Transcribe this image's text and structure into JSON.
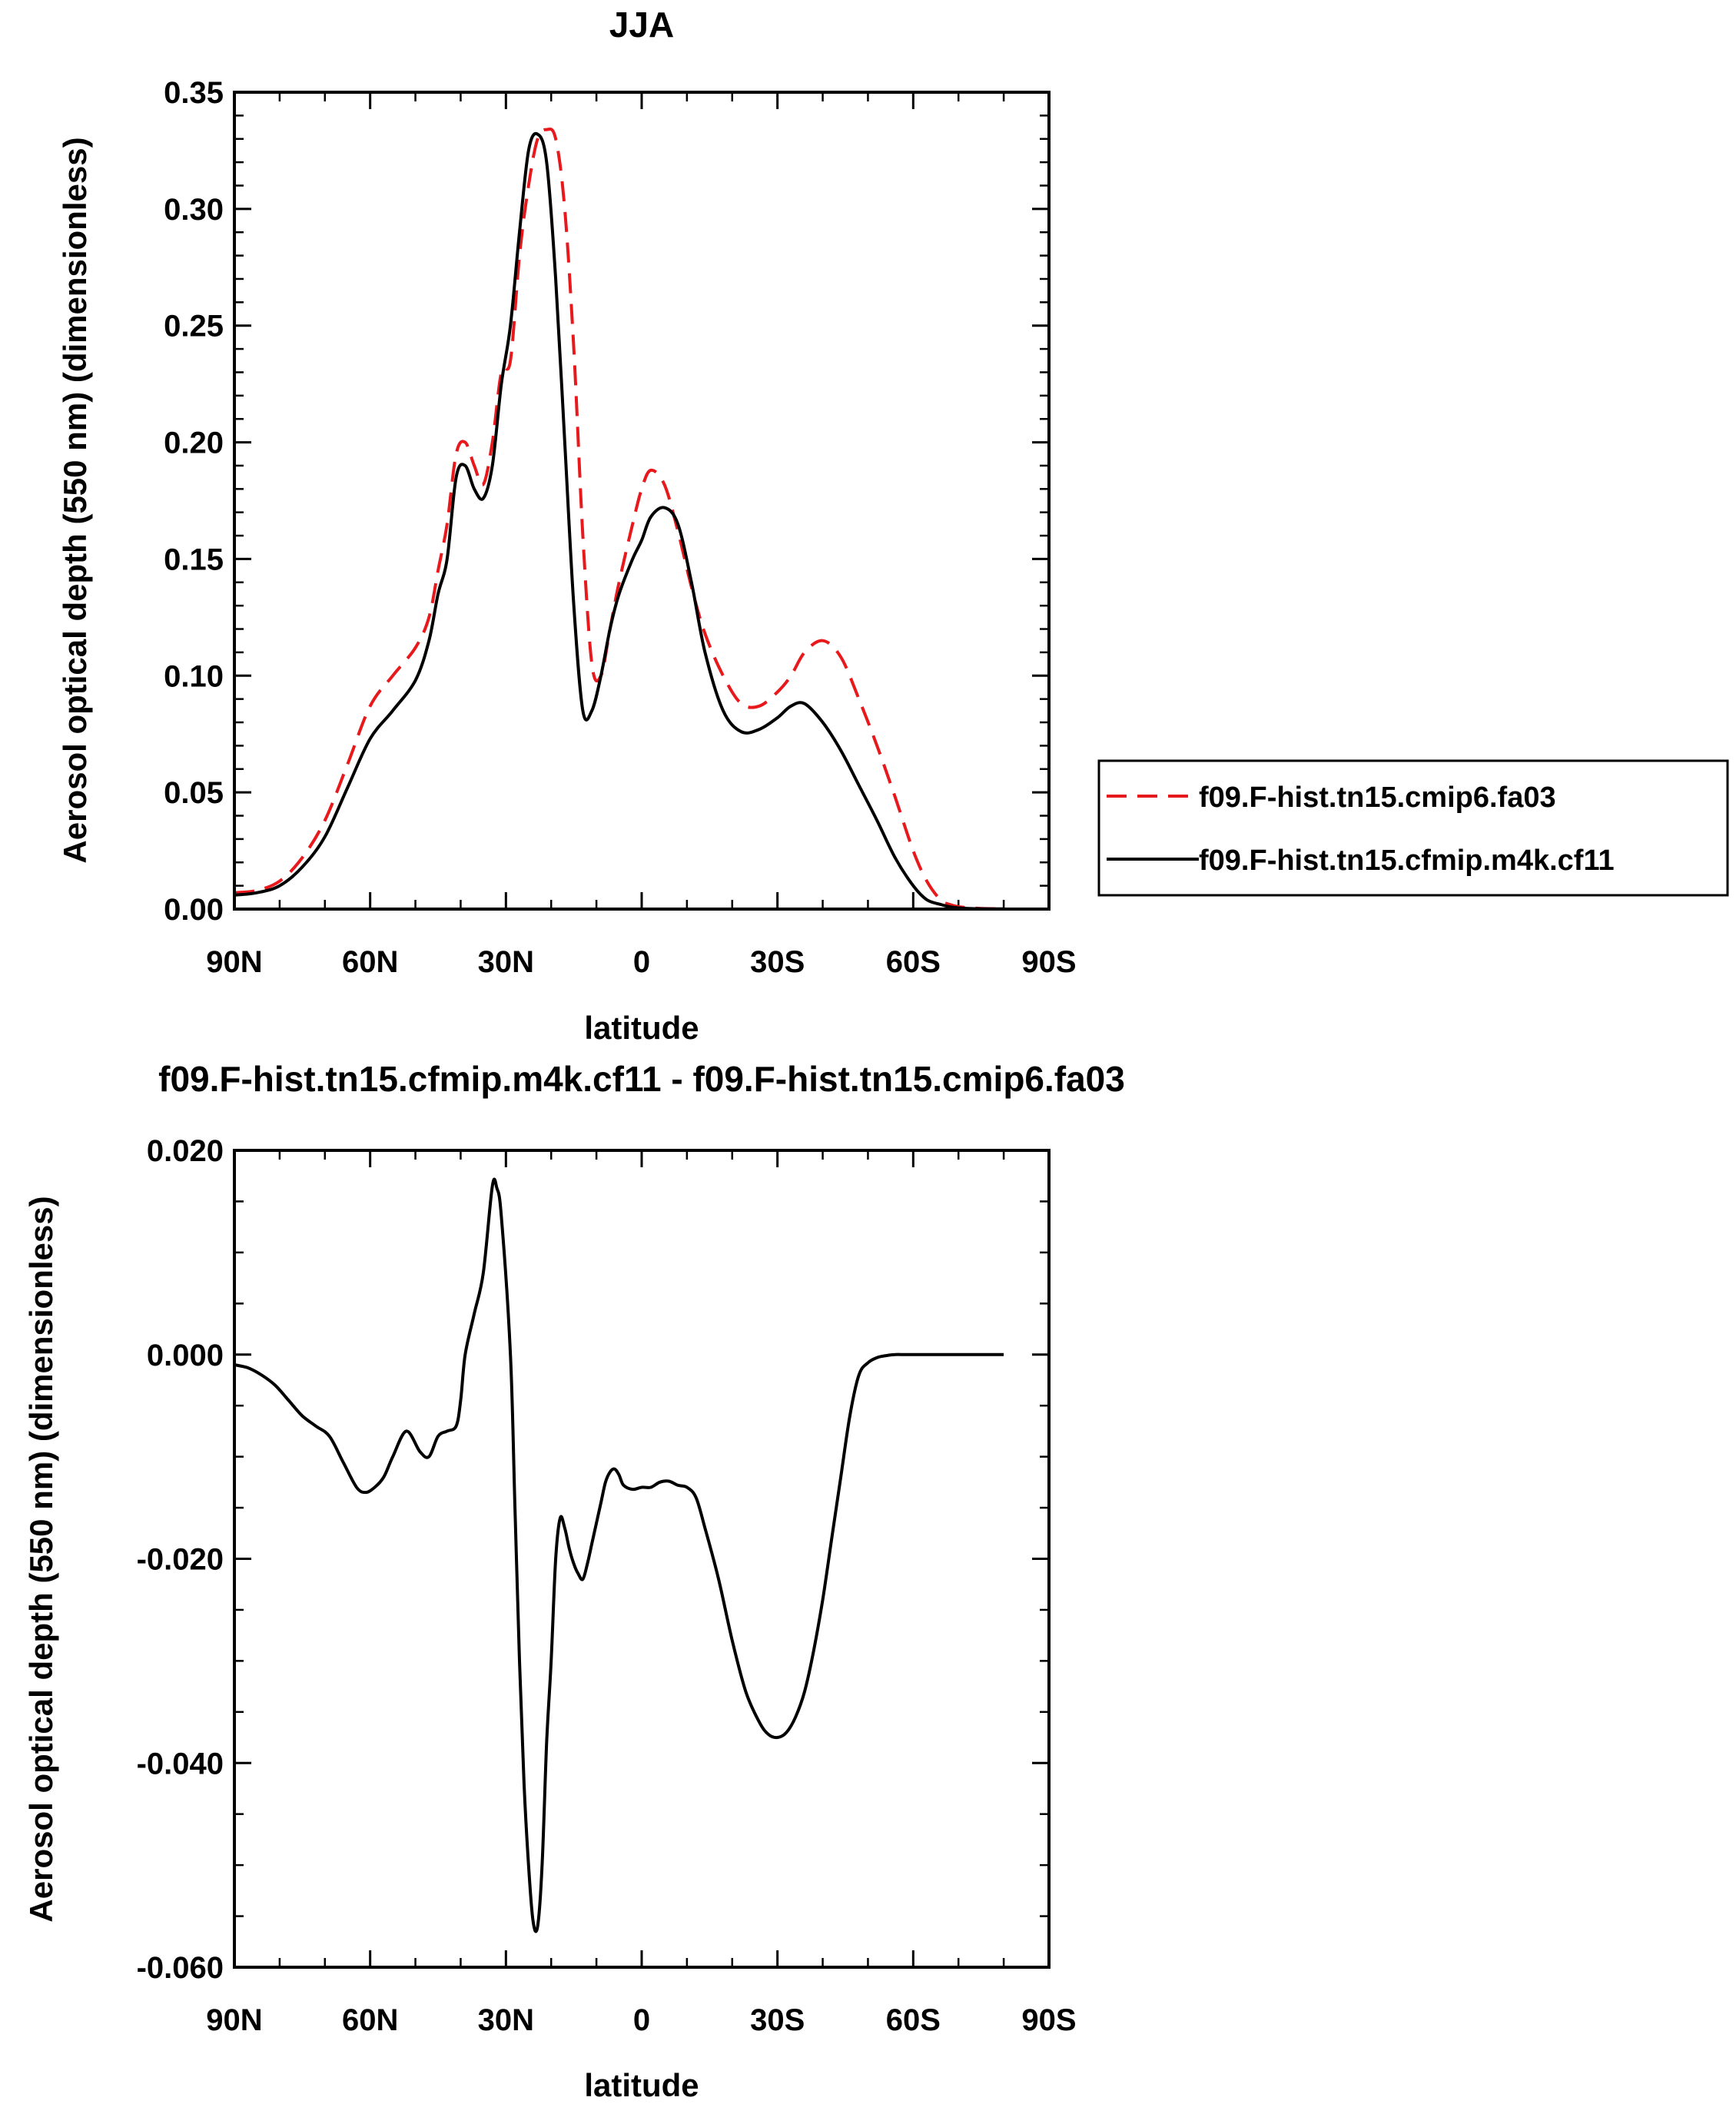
{
  "chart_data": [
    {
      "type": "line",
      "title": "JJA",
      "xlabel": "latitude",
      "ylabel": "Aerosol optical depth (550 nm) (dimensionless)",
      "xlim": [
        90,
        -90
      ],
      "ylim": [
        0,
        0.35
      ],
      "xticks": [
        90,
        60,
        30,
        0,
        -30,
        -60,
        -90
      ],
      "xtick_labels": [
        "90N",
        "60N",
        "30N",
        "0",
        "30S",
        "60S",
        "90S"
      ],
      "yticks": [
        0,
        0.05,
        0.1,
        0.15,
        0.2,
        0.25,
        0.3,
        0.35
      ],
      "ytick_labels": [
        "0.00",
        "0.05",
        "0.10",
        "0.15",
        "0.20",
        "0.25",
        "0.30",
        "0.35"
      ],
      "legend_position": "right",
      "series": [
        {
          "name": "f09.F-hist.tn15.cmip6.fa03",
          "color": "#e8191c",
          "dash": "dashed",
          "x": [
            90,
            85,
            80,
            75,
            70,
            65,
            60,
            55,
            50,
            47,
            45,
            43,
            41,
            39,
            37,
            35,
            33,
            31,
            29,
            27,
            25,
            23,
            21,
            19,
            17,
            15,
            13,
            11,
            9,
            7,
            5,
            2,
            0,
            -2,
            -5,
            -8,
            -11,
            -14,
            -18,
            -22,
            -26,
            -30,
            -33,
            -36,
            -40,
            -44,
            -48,
            -52,
            -56,
            -60,
            -63,
            -66,
            -68,
            -70,
            -73,
            -76,
            -80
          ],
          "y": [
            0.007,
            0.008,
            0.012,
            0.022,
            0.038,
            0.062,
            0.087,
            0.1,
            0.112,
            0.125,
            0.145,
            0.165,
            0.195,
            0.2,
            0.19,
            0.182,
            0.2,
            0.23,
            0.235,
            0.28,
            0.31,
            0.33,
            0.334,
            0.33,
            0.3,
            0.24,
            0.16,
            0.105,
            0.1,
            0.12,
            0.14,
            0.165,
            0.18,
            0.188,
            0.182,
            0.162,
            0.138,
            0.118,
            0.1,
            0.088,
            0.087,
            0.093,
            0.1,
            0.11,
            0.115,
            0.108,
            0.09,
            0.07,
            0.048,
            0.025,
            0.012,
            0.004,
            0.002,
            0.001,
            0.0005,
            0.0002,
            0.0001
          ]
        },
        {
          "name": "f09.F-hist.tn15.cfmip.m4k.cf11",
          "color": "#000000",
          "dash": "solid",
          "x": [
            90,
            85,
            80,
            75,
            70,
            65,
            60,
            55,
            50,
            47,
            45,
            43,
            41,
            39,
            37,
            35,
            33,
            31,
            29,
            27,
            25,
            23,
            21,
            19,
            17,
            15,
            13,
            11,
            9,
            7,
            5,
            2,
            0,
            -2,
            -5,
            -8,
            -11,
            -14,
            -18,
            -22,
            -26,
            -30,
            -33,
            -36,
            -40,
            -44,
            -48,
            -52,
            -56,
            -60,
            -63,
            -66,
            -68,
            -70,
            -73,
            -76,
            -80
          ],
          "y": [
            0.006,
            0.007,
            0.01,
            0.018,
            0.031,
            0.052,
            0.073,
            0.085,
            0.098,
            0.115,
            0.135,
            0.15,
            0.185,
            0.19,
            0.18,
            0.176,
            0.19,
            0.225,
            0.25,
            0.29,
            0.325,
            0.332,
            0.32,
            0.27,
            0.2,
            0.13,
            0.085,
            0.085,
            0.1,
            0.12,
            0.135,
            0.15,
            0.158,
            0.168,
            0.172,
            0.165,
            0.14,
            0.11,
            0.085,
            0.076,
            0.077,
            0.082,
            0.087,
            0.088,
            0.08,
            0.068,
            0.053,
            0.038,
            0.022,
            0.01,
            0.004,
            0.002,
            0.001,
            0.0005,
            0.0002,
            0.0001,
            0.0001
          ]
        }
      ]
    },
    {
      "type": "line",
      "title": "f09.F-hist.tn15.cfmip.m4k.cf11 - f09.F-hist.tn15.cmip6.fa03",
      "xlabel": "latitude",
      "ylabel": "Aerosol optical depth (550 nm) (dimensionless)",
      "xlim": [
        90,
        -90
      ],
      "ylim": [
        -0.06,
        0.02
      ],
      "xticks": [
        90,
        60,
        30,
        0,
        -30,
        -60,
        -90
      ],
      "xtick_labels": [
        "90N",
        "60N",
        "30N",
        "0",
        "30S",
        "60S",
        "90S"
      ],
      "yticks": [
        -0.06,
        -0.04,
        -0.02,
        0,
        0.02
      ],
      "ytick_labels": [
        "-0.060",
        "-0.040",
        "-0.020",
        "0.000",
        "0.020"
      ],
      "series": [
        {
          "color": "#000000",
          "dash": "solid",
          "x": [
            90,
            87,
            84,
            81,
            78,
            75,
            72,
            69,
            66,
            63,
            61,
            59,
            57,
            55,
            52,
            49,
            47,
            45,
            43,
            41,
            40,
            39,
            37,
            35,
            33,
            32,
            31,
            29,
            28,
            27,
            26,
            25,
            24,
            23,
            22,
            21,
            20,
            19,
            18,
            17,
            16,
            15,
            14,
            13,
            12,
            11,
            10,
            9,
            8,
            7,
            6,
            5,
            4,
            2,
            0,
            -2,
            -4,
            -6,
            -8,
            -10,
            -12,
            -14,
            -17,
            -20,
            -23,
            -26,
            -28,
            -30,
            -32,
            -34,
            -36,
            -38,
            -40,
            -42,
            -44,
            -46,
            -48,
            -50,
            -52,
            -54,
            -56,
            -58,
            -60,
            -62,
            -64,
            -66,
            -68,
            -70,
            -73,
            -76,
            -80
          ],
          "y": [
            -0.001,
            -0.0013,
            -0.002,
            -0.003,
            -0.0045,
            -0.006,
            -0.007,
            -0.008,
            -0.0105,
            -0.013,
            -0.0135,
            -0.013,
            -0.012,
            -0.01,
            -0.0075,
            -0.0095,
            -0.01,
            -0.008,
            -0.0075,
            -0.007,
            -0.0045,
            0.0,
            0.004,
            0.008,
            0.0165,
            0.0163,
            0.0135,
            0.0,
            -0.015,
            -0.03,
            -0.042,
            -0.05,
            -0.0555,
            -0.056,
            -0.05,
            -0.038,
            -0.03,
            -0.02,
            -0.016,
            -0.017,
            -0.019,
            -0.0205,
            -0.0215,
            -0.022,
            -0.0205,
            -0.0185,
            -0.0165,
            -0.0145,
            -0.0125,
            -0.0115,
            -0.0112,
            -0.0118,
            -0.0128,
            -0.0132,
            -0.013,
            -0.013,
            -0.0125,
            -0.0124,
            -0.0128,
            -0.013,
            -0.014,
            -0.017,
            -0.022,
            -0.028,
            -0.033,
            -0.036,
            -0.0372,
            -0.0375,
            -0.037,
            -0.0355,
            -0.033,
            -0.029,
            -0.024,
            -0.018,
            -0.012,
            -0.006,
            -0.002,
            -0.0008,
            -0.0003,
            -0.0001,
            0.0,
            0.0,
            0.0,
            0.0,
            0.0,
            0.0,
            0.0,
            0.0,
            0.0,
            0.0,
            0.0
          ]
        }
      ]
    }
  ]
}
